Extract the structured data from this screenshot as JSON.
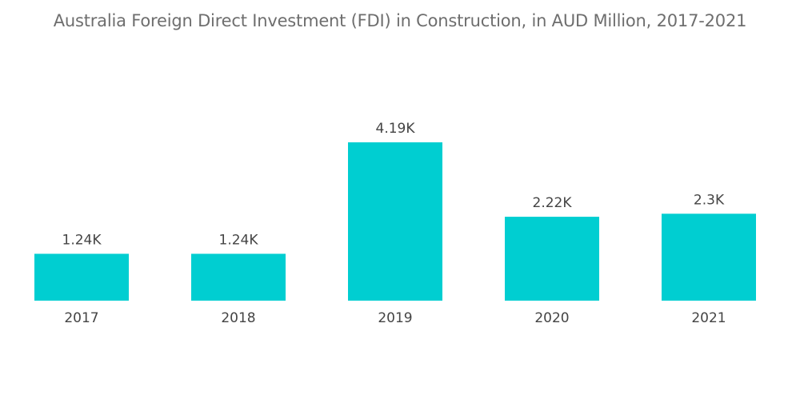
{
  "chart_data": {
    "type": "bar",
    "title": "Australia Foreign Direct Investment (FDI) in Construction, in AUD Million, 2017-2021",
    "categories": [
      "2017",
      "2018",
      "2019",
      "2020",
      "2021"
    ],
    "values": [
      1240,
      1240,
      4190,
      2220,
      2300
    ],
    "data_labels": [
      "1.24K",
      "1.24K",
      "4.19K",
      "2.22K",
      "2.3K"
    ],
    "xlabel": "",
    "ylabel": "",
    "ylim": [
      0,
      5000
    ],
    "grid": false,
    "legend": "none",
    "colors": {
      "bar": "#00ced1",
      "text": "#444444",
      "title": "#6e6e6e"
    }
  }
}
